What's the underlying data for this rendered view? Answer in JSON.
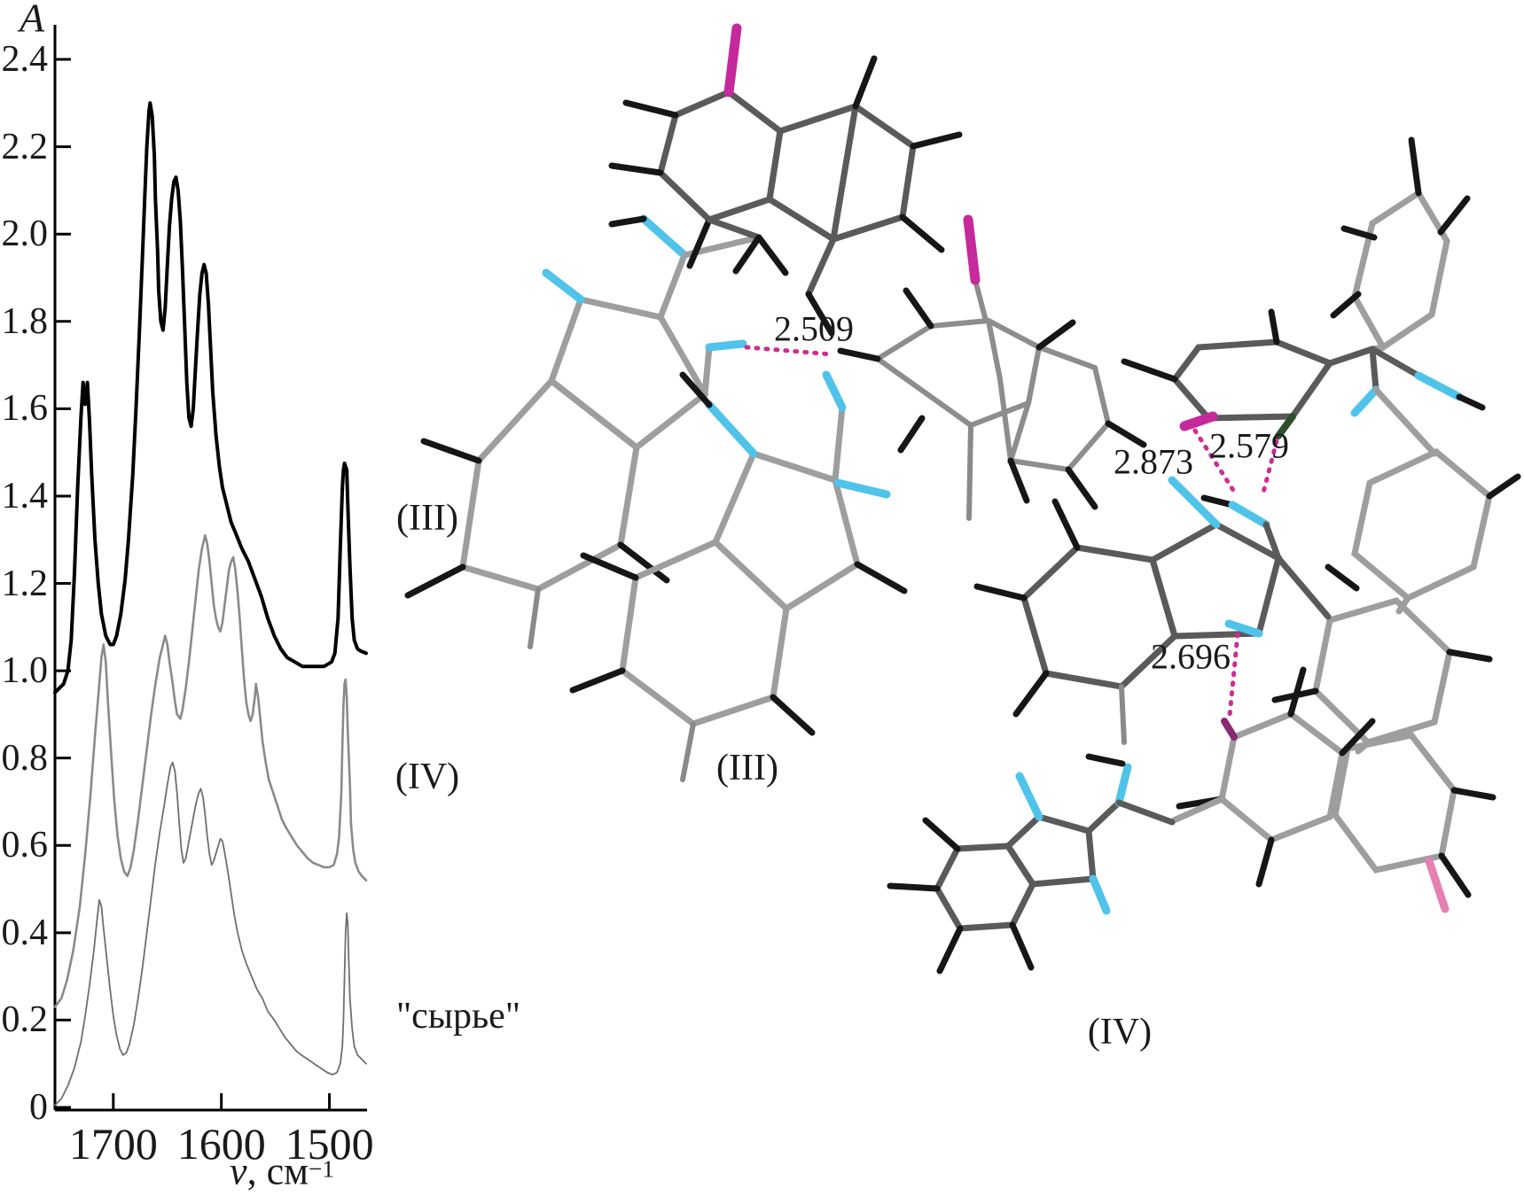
{
  "page": {
    "background": "#ffffff"
  },
  "chart_data": {
    "type": "line",
    "ylabel": "A",
    "xlabel": {
      "nu": "ν",
      "rest": ", см",
      "sup": "−1"
    },
    "x_ticks": [
      {
        "value": 1700,
        "label": "1700"
      },
      {
        "value": 1600,
        "label": "1600"
      },
      {
        "value": 1500,
        "label": "1500"
      }
    ],
    "y_ticks": [
      {
        "value": 0,
        "label": "0"
      },
      {
        "value": 0.2,
        "label": "0.2"
      },
      {
        "value": 0.4,
        "label": "0.4"
      },
      {
        "value": 0.6,
        "label": "0.6"
      },
      {
        "value": 0.8,
        "label": "0.8"
      },
      {
        "value": 1.0,
        "label": "1.0"
      },
      {
        "value": 1.2,
        "label": "1.2"
      },
      {
        "value": 1.4,
        "label": "1.4"
      },
      {
        "value": 1.6,
        "label": "1.6"
      },
      {
        "value": 1.8,
        "label": "1.8"
      },
      {
        "value": 2.0,
        "label": "2.0"
      },
      {
        "value": 2.2,
        "label": "2.2"
      },
      {
        "value": 2.4,
        "label": "2.4"
      }
    ],
    "x_range": [
      1754,
      1466
    ],
    "y_range": [
      0,
      2.47
    ],
    "x_axis_reversed": true,
    "grid": false,
    "series": [
      {
        "name": "(III)",
        "color": "#000000",
        "width": 4,
        "points": [
          [
            1754,
            0.95
          ],
          [
            1750,
            0.96
          ],
          [
            1746,
            0.97
          ],
          [
            1742,
            1.0
          ],
          [
            1739,
            1.07
          ],
          [
            1736,
            1.22
          ],
          [
            1733,
            1.42
          ],
          [
            1730,
            1.58
          ],
          [
            1728,
            1.66
          ],
          [
            1726,
            1.61
          ],
          [
            1724,
            1.66
          ],
          [
            1722,
            1.57
          ],
          [
            1720,
            1.45
          ],
          [
            1717,
            1.3
          ],
          [
            1714,
            1.2
          ],
          [
            1711,
            1.13
          ],
          [
            1707,
            1.08
          ],
          [
            1703,
            1.06
          ],
          [
            1700,
            1.06
          ],
          [
            1697,
            1.08
          ],
          [
            1693,
            1.13
          ],
          [
            1689,
            1.21
          ],
          [
            1686,
            1.3
          ],
          [
            1682,
            1.45
          ],
          [
            1679,
            1.6
          ],
          [
            1676,
            1.77
          ],
          [
            1673,
            1.95
          ],
          [
            1671,
            2.08
          ],
          [
            1669,
            2.2
          ],
          [
            1667,
            2.28
          ],
          [
            1666,
            2.3
          ],
          [
            1664,
            2.27
          ],
          [
            1662,
            2.18
          ],
          [
            1661,
            2.08
          ],
          [
            1659,
            1.96
          ],
          [
            1658,
            1.87
          ],
          [
            1656,
            1.8
          ],
          [
            1654,
            1.78
          ],
          [
            1652,
            1.83
          ],
          [
            1650,
            1.93
          ],
          [
            1648,
            2.02
          ],
          [
            1646,
            2.08
          ],
          [
            1644,
            2.12
          ],
          [
            1642,
            2.13
          ],
          [
            1640,
            2.1
          ],
          [
            1638,
            2.03
          ],
          [
            1636,
            1.92
          ],
          [
            1634,
            1.79
          ],
          [
            1632,
            1.66
          ],
          [
            1630,
            1.58
          ],
          [
            1628,
            1.56
          ],
          [
            1626,
            1.6
          ],
          [
            1624,
            1.69
          ],
          [
            1622,
            1.78
          ],
          [
            1620,
            1.86
          ],
          [
            1618,
            1.91
          ],
          [
            1616,
            1.93
          ],
          [
            1614,
            1.91
          ],
          [
            1612,
            1.84
          ],
          [
            1610,
            1.74
          ],
          [
            1608,
            1.64
          ],
          [
            1605,
            1.54
          ],
          [
            1602,
            1.47
          ],
          [
            1599,
            1.42
          ],
          [
            1595,
            1.38
          ],
          [
            1591,
            1.34
          ],
          [
            1586,
            1.31
          ],
          [
            1581,
            1.28
          ],
          [
            1575,
            1.25
          ],
          [
            1569,
            1.21
          ],
          [
            1563,
            1.17
          ],
          [
            1557,
            1.12
          ],
          [
            1551,
            1.08
          ],
          [
            1545,
            1.05
          ],
          [
            1539,
            1.03
          ],
          [
            1532,
            1.02
          ],
          [
            1525,
            1.01
          ],
          [
            1515,
            1.01
          ],
          [
            1505,
            1.01
          ],
          [
            1498,
            1.02
          ],
          [
            1495,
            1.04
          ],
          [
            1492,
            1.12
          ],
          [
            1490,
            1.28
          ],
          [
            1488,
            1.42
          ],
          [
            1487,
            1.46
          ],
          [
            1486,
            1.475
          ],
          [
            1484,
            1.46
          ],
          [
            1483,
            1.38
          ],
          [
            1481,
            1.24
          ],
          [
            1479,
            1.12
          ],
          [
            1477,
            1.07
          ],
          [
            1474,
            1.05
          ],
          [
            1471,
            1.045
          ],
          [
            1466,
            1.04
          ]
        ]
      },
      {
        "name": "(IV)",
        "color": "#8a8a8a",
        "width": 2.6,
        "points": [
          [
            1754,
            0.23
          ],
          [
            1748,
            0.25
          ],
          [
            1743,
            0.29
          ],
          [
            1737,
            0.36
          ],
          [
            1731,
            0.46
          ],
          [
            1726,
            0.58
          ],
          [
            1721,
            0.72
          ],
          [
            1717,
            0.85
          ],
          [
            1713,
            0.97
          ],
          [
            1711,
            1.03
          ],
          [
            1709,
            1.06
          ],
          [
            1707,
            1.02
          ],
          [
            1705,
            0.93
          ],
          [
            1702,
            0.81
          ],
          [
            1699,
            0.7
          ],
          [
            1696,
            0.62
          ],
          [
            1693,
            0.57
          ],
          [
            1690,
            0.54
          ],
          [
            1687,
            0.53
          ],
          [
            1684,
            0.55
          ],
          [
            1681,
            0.59
          ],
          [
            1677,
            0.66
          ],
          [
            1673,
            0.74
          ],
          [
            1669,
            0.82
          ],
          [
            1665,
            0.9
          ],
          [
            1661,
            0.97
          ],
          [
            1657,
            1.03
          ],
          [
            1654,
            1.06
          ],
          [
            1652,
            1.08
          ],
          [
            1650,
            1.06
          ],
          [
            1648,
            1.02
          ],
          [
            1645,
            0.97
          ],
          [
            1643,
            0.93
          ],
          [
            1641,
            0.9
          ],
          [
            1638,
            0.89
          ],
          [
            1636,
            0.91
          ],
          [
            1633,
            0.96
          ],
          [
            1630,
            1.02
          ],
          [
            1627,
            1.09
          ],
          [
            1624,
            1.16
          ],
          [
            1621,
            1.23
          ],
          [
            1618,
            1.28
          ],
          [
            1616,
            1.3
          ],
          [
            1615,
            1.31
          ],
          [
            1613,
            1.29
          ],
          [
            1611,
            1.25
          ],
          [
            1609,
            1.2
          ],
          [
            1607,
            1.15
          ],
          [
            1605,
            1.12
          ],
          [
            1603,
            1.1
          ],
          [
            1601,
            1.09
          ],
          [
            1599,
            1.11
          ],
          [
            1597,
            1.15
          ],
          [
            1595,
            1.19
          ],
          [
            1593,
            1.23
          ],
          [
            1591,
            1.25
          ],
          [
            1589,
            1.26
          ],
          [
            1587,
            1.23
          ],
          [
            1585,
            1.18
          ],
          [
            1583,
            1.12
          ],
          [
            1581,
            1.05
          ],
          [
            1579,
            0.98
          ],
          [
            1577,
            0.93
          ],
          [
            1575,
            0.9
          ],
          [
            1573,
            0.885
          ],
          [
            1571,
            0.9
          ],
          [
            1569,
            0.94
          ],
          [
            1568,
            0.97
          ],
          [
            1566,
            0.94
          ],
          [
            1564,
            0.89
          ],
          [
            1562,
            0.84
          ],
          [
            1559,
            0.79
          ],
          [
            1556,
            0.75
          ],
          [
            1552,
            0.72
          ],
          [
            1548,
            0.69
          ],
          [
            1544,
            0.66
          ],
          [
            1540,
            0.64
          ],
          [
            1535,
            0.62
          ],
          [
            1530,
            0.6
          ],
          [
            1525,
            0.585
          ],
          [
            1520,
            0.57
          ],
          [
            1515,
            0.56
          ],
          [
            1510,
            0.555
          ],
          [
            1505,
            0.55
          ],
          [
            1500,
            0.55
          ],
          [
            1496,
            0.555
          ],
          [
            1493,
            0.58
          ],
          [
            1491,
            0.62
          ],
          [
            1489,
            0.72
          ],
          [
            1488,
            0.83
          ],
          [
            1487,
            0.92
          ],
          [
            1486,
            0.97
          ],
          [
            1485,
            0.98
          ],
          [
            1484,
            0.94
          ],
          [
            1483,
            0.86
          ],
          [
            1481,
            0.74
          ],
          [
            1480,
            0.65
          ],
          [
            1478,
            0.59
          ],
          [
            1476,
            0.56
          ],
          [
            1473,
            0.54
          ],
          [
            1470,
            0.53
          ],
          [
            1466,
            0.52
          ]
        ]
      },
      {
        "name": "\"сырье\"",
        "color": "#6f6f6f",
        "width": 1.8,
        "points": [
          [
            1754,
            0.005
          ],
          [
            1748,
            0.02
          ],
          [
            1742,
            0.05
          ],
          [
            1736,
            0.09
          ],
          [
            1730,
            0.15
          ],
          [
            1726,
            0.21
          ],
          [
            1722,
            0.28
          ],
          [
            1718,
            0.36
          ],
          [
            1715,
            0.43
          ],
          [
            1713,
            0.475
          ],
          [
            1711,
            0.46
          ],
          [
            1709,
            0.41
          ],
          [
            1706,
            0.34
          ],
          [
            1703,
            0.27
          ],
          [
            1700,
            0.21
          ],
          [
            1697,
            0.165
          ],
          [
            1694,
            0.135
          ],
          [
            1691,
            0.12
          ],
          [
            1688,
            0.125
          ],
          [
            1685,
            0.145
          ],
          [
            1681,
            0.19
          ],
          [
            1677,
            0.25
          ],
          [
            1673,
            0.32
          ],
          [
            1669,
            0.4
          ],
          [
            1665,
            0.48
          ],
          [
            1661,
            0.56
          ],
          [
            1657,
            0.63
          ],
          [
            1653,
            0.69
          ],
          [
            1650,
            0.74
          ],
          [
            1647,
            0.78
          ],
          [
            1645,
            0.79
          ],
          [
            1643,
            0.77
          ],
          [
            1641,
            0.72
          ],
          [
            1639,
            0.65
          ],
          [
            1637,
            0.59
          ],
          [
            1635,
            0.56
          ],
          [
            1633,
            0.57
          ],
          [
            1630,
            0.61
          ],
          [
            1627,
            0.65
          ],
          [
            1624,
            0.69
          ],
          [
            1621,
            0.72
          ],
          [
            1619,
            0.73
          ],
          [
            1617,
            0.71
          ],
          [
            1615,
            0.67
          ],
          [
            1613,
            0.62
          ],
          [
            1611,
            0.58
          ],
          [
            1609,
            0.555
          ],
          [
            1607,
            0.565
          ],
          [
            1604,
            0.59
          ],
          [
            1601,
            0.615
          ],
          [
            1599,
            0.61
          ],
          [
            1597,
            0.585
          ],
          [
            1594,
            0.54
          ],
          [
            1591,
            0.49
          ],
          [
            1588,
            0.44
          ],
          [
            1585,
            0.4
          ],
          [
            1581,
            0.36
          ],
          [
            1577,
            0.33
          ],
          [
            1572,
            0.3
          ],
          [
            1567,
            0.27
          ],
          [
            1562,
            0.25
          ],
          [
            1557,
            0.22
          ],
          [
            1551,
            0.2
          ],
          [
            1546,
            0.18
          ],
          [
            1541,
            0.16
          ],
          [
            1536,
            0.145
          ],
          [
            1531,
            0.13
          ],
          [
            1526,
            0.12
          ],
          [
            1520,
            0.11
          ],
          [
            1514,
            0.1
          ],
          [
            1508,
            0.09
          ],
          [
            1502,
            0.08
          ],
          [
            1497,
            0.075
          ],
          [
            1493,
            0.08
          ],
          [
            1490,
            0.1
          ],
          [
            1488,
            0.14
          ],
          [
            1487,
            0.2
          ],
          [
            1486,
            0.3
          ],
          [
            1485,
            0.4
          ],
          [
            1484,
            0.445
          ],
          [
            1483,
            0.42
          ],
          [
            1482,
            0.33
          ],
          [
            1481,
            0.25
          ],
          [
            1479,
            0.18
          ],
          [
            1477,
            0.14
          ],
          [
            1474,
            0.12
          ],
          [
            1470,
            0.11
          ],
          [
            1466,
            0.1
          ]
        ]
      }
    ]
  },
  "structures": {
    "left": {
      "label": "(III)",
      "hbonds": [
        {
          "length": "2.509"
        }
      ]
    },
    "right": {
      "label": "(IV)",
      "hbonds": [
        {
          "length": "2.873"
        },
        {
          "length": "2.579"
        },
        {
          "length": "2.696"
        }
      ]
    }
  },
  "atom_colors": {
    "carbon_dark": "#5a5a5a",
    "carbon_light": "#9e9e9e",
    "hydrogen": "#161616",
    "nitrogen": "#4fc3ea",
    "halogen_magenta": "#c5299b",
    "halogen_green": "#2e4f2e",
    "hbond_pink": "#cc2d92"
  }
}
